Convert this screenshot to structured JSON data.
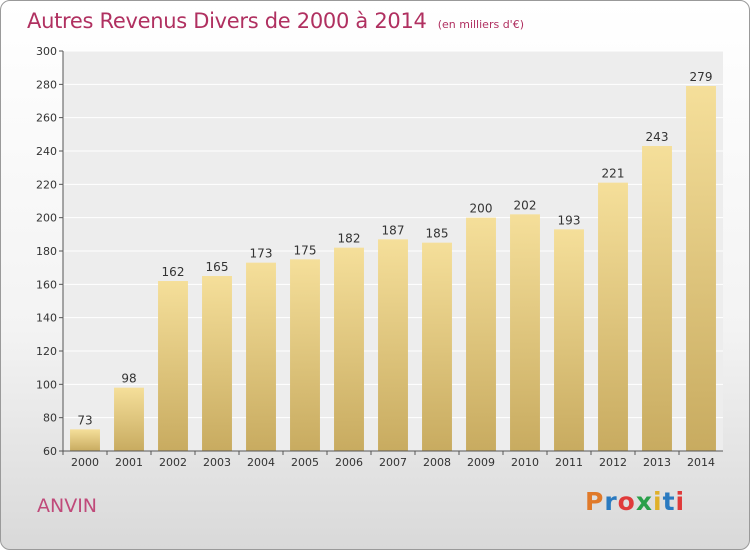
{
  "header": {
    "title": "Autres Revenus Divers de 2000 à 2014",
    "subtitle": "(en milliers d'€)"
  },
  "footer": {
    "commune": "ANVIN",
    "brand": "Proxiti",
    "brand_colors": [
      "#e07a2a",
      "#2a7ac0",
      "#e03a3a",
      "#2aa04a",
      "#e0b02a",
      "#2a7ac0",
      "#e03a3a"
    ]
  },
  "chart_data": {
    "type": "bar",
    "title": "Autres Revenus Divers de 2000 à 2014",
    "subtitle": "(en milliers d'€)",
    "categories": [
      "2000",
      "2001",
      "2002",
      "2003",
      "2004",
      "2005",
      "2006",
      "2007",
      "2008",
      "2009",
      "2010",
      "2011",
      "2012",
      "2013",
      "2014"
    ],
    "values": [
      73,
      98,
      162,
      165,
      173,
      175,
      182,
      187,
      185,
      200,
      202,
      193,
      221,
      243,
      279
    ],
    "ylim": [
      60,
      300
    ],
    "yticks": [
      60,
      80,
      100,
      120,
      140,
      160,
      180,
      200,
      220,
      240,
      260,
      280,
      300
    ],
    "grid": true,
    "bar_color_top": "#f5df9a",
    "bar_color_bottom": "#c8ab60"
  }
}
